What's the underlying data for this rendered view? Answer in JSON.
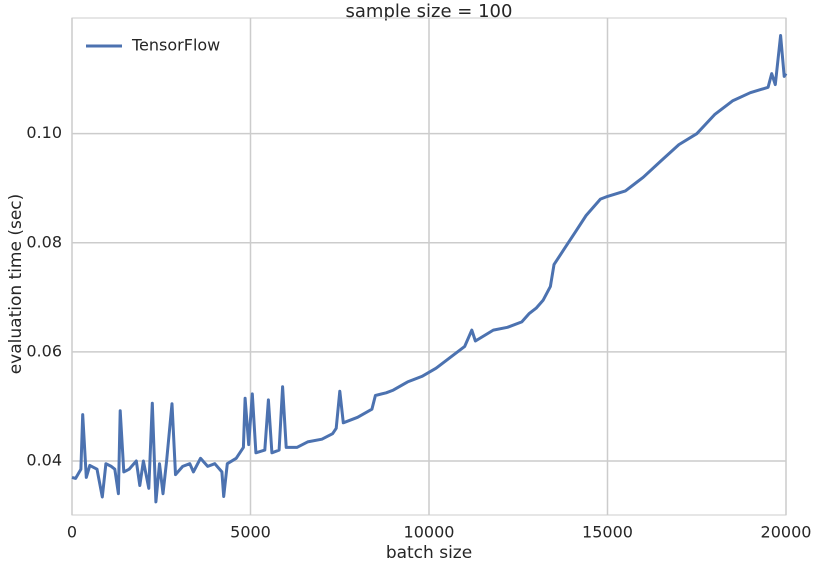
{
  "chart_data": {
    "type": "line",
    "title": "sample size = 100",
    "x_label": "batch size",
    "y_label": "evaluation time (sec)",
    "x": [
      0,
      100,
      250,
      300,
      400,
      500,
      700,
      850,
      950,
      1100,
      1200,
      1300,
      1350,
      1450,
      1600,
      1800,
      1900,
      2000,
      2150,
      2250,
      2350,
      2450,
      2550,
      2650,
      2800,
      2900,
      3100,
      3300,
      3400,
      3600,
      3800,
      4000,
      4200,
      4250,
      4350,
      4600,
      4800,
      4850,
      4950,
      5050,
      5150,
      5400,
      5500,
      5600,
      5800,
      5900,
      6000,
      6300,
      6600,
      7000,
      7300,
      7400,
      7500,
      7600,
      8000,
      8400,
      8500,
      8800,
      9000,
      9400,
      9800,
      10200,
      10600,
      11000,
      11200,
      11300,
      11800,
      12200,
      12600,
      12800,
      13000,
      13200,
      13400,
      13500,
      13800,
      14100,
      14400,
      14800,
      15000,
      15500,
      16000,
      16500,
      17000,
      17500,
      18000,
      18500,
      19000,
      19500,
      19600,
      19700,
      19850,
      19950,
      20000
    ],
    "series": [
      {
        "name": "TensorFlow",
        "color": "#4c72b0",
        "values": [
          0.037,
          0.0368,
          0.0385,
          0.0485,
          0.037,
          0.0392,
          0.0385,
          0.0334,
          0.0395,
          0.039,
          0.0385,
          0.034,
          0.0492,
          0.038,
          0.0385,
          0.04,
          0.0355,
          0.04,
          0.035,
          0.0506,
          0.0325,
          0.0395,
          0.034,
          0.04,
          0.0505,
          0.0375,
          0.039,
          0.0395,
          0.038,
          0.0405,
          0.039,
          0.0395,
          0.038,
          0.0335,
          0.0395,
          0.0405,
          0.0425,
          0.0515,
          0.043,
          0.0523,
          0.0415,
          0.042,
          0.0512,
          0.0415,
          0.042,
          0.0536,
          0.0425,
          0.0425,
          0.0435,
          0.044,
          0.045,
          0.046,
          0.0528,
          0.047,
          0.048,
          0.0495,
          0.052,
          0.0525,
          0.053,
          0.0545,
          0.0555,
          0.057,
          0.059,
          0.061,
          0.064,
          0.062,
          0.064,
          0.0645,
          0.0655,
          0.067,
          0.068,
          0.0695,
          0.072,
          0.076,
          0.079,
          0.082,
          0.085,
          0.088,
          0.0885,
          0.0895,
          0.092,
          0.095,
          0.098,
          0.1,
          0.1035,
          0.106,
          0.1075,
          0.1085,
          0.111,
          0.109,
          0.118,
          0.1105,
          0.111
        ]
      }
    ],
    "xlim": [
      0,
      20000
    ],
    "xticks": [
      0,
      5000,
      10000,
      15000,
      20000
    ],
    "ylim": [
      0.0301,
      0.1212
    ],
    "yticks": [
      0.04,
      0.06,
      0.08,
      {
        "value": 0.1,
        "label": "0.10"
      }
    ],
    "grid": true,
    "legend": "upper-left"
  }
}
